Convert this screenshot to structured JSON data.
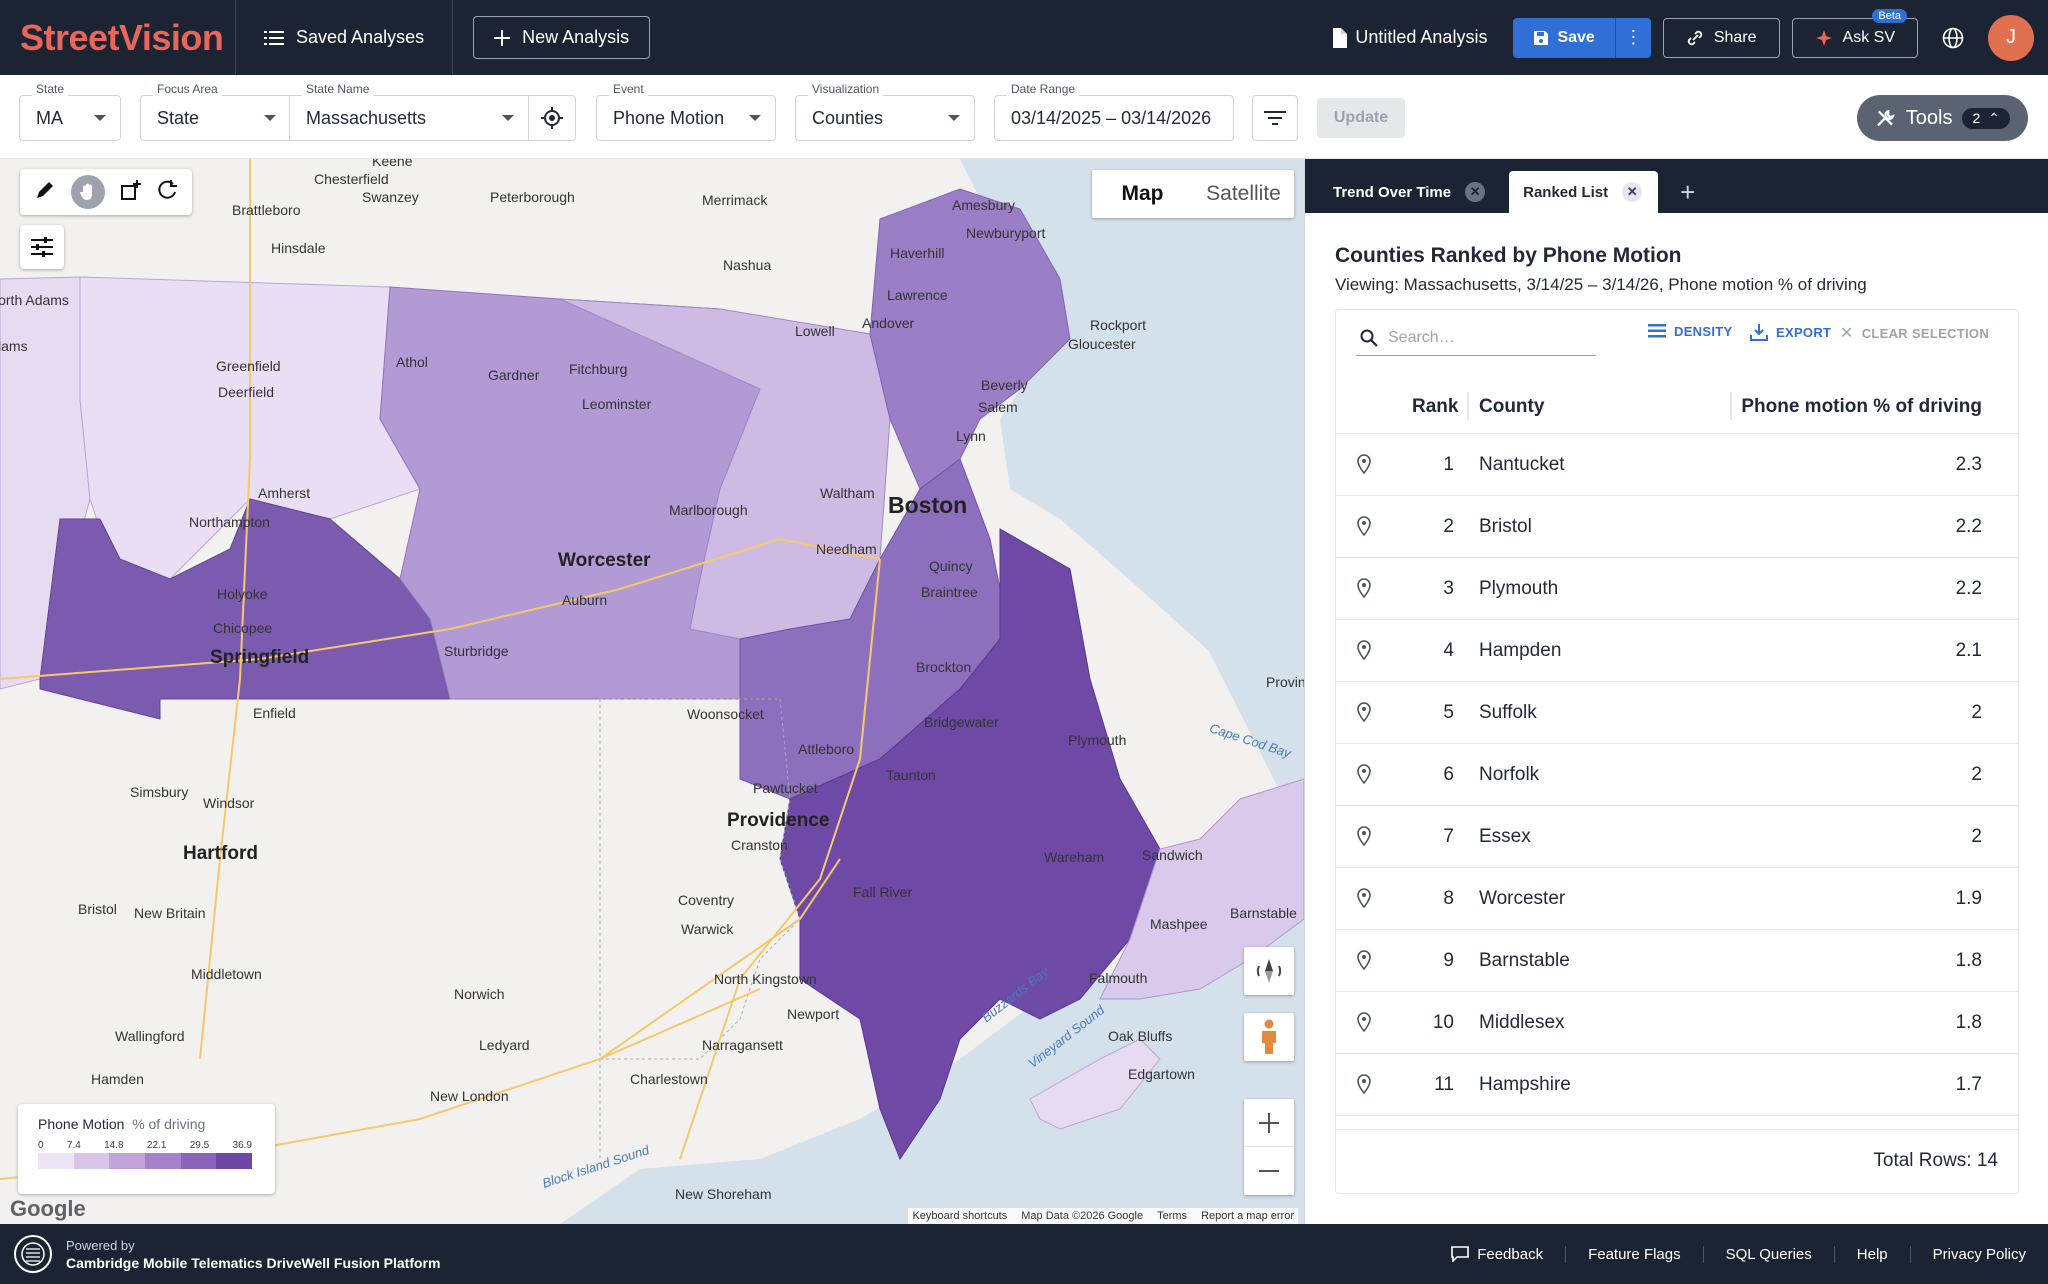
{
  "app": {
    "brand_part1": "Street",
    "brand_part2": "Vision",
    "saved_analyses": "Saved Analyses",
    "new_analysis": "New Analysis",
    "analysis_name": "Untitled Analysis",
    "save": "Save",
    "share": "Share",
    "ask": "Ask SV",
    "beta": "Beta",
    "avatar_initial": "J",
    "accent_color": "#2f6fd6",
    "brand_color": "#e8665a"
  },
  "filters": {
    "state": {
      "label": "State",
      "value": "MA"
    },
    "focus_area": {
      "label": "Focus Area",
      "value": "State"
    },
    "state_name": {
      "label": "State Name",
      "value": "Massachusetts"
    },
    "event": {
      "label": "Event",
      "value": "Phone Motion"
    },
    "visualization": {
      "label": "Visualization",
      "value": "Counties"
    },
    "date_range": {
      "label": "Date Range",
      "value": "03/14/2025 – 03/14/2026"
    },
    "update": "Update",
    "tools": "Tools",
    "tools_count": "2"
  },
  "map": {
    "type_map": "Map",
    "type_satellite": "Satellite",
    "legend_title": "Phone Motion",
    "legend_unit": "% of driving",
    "legend_ticks": [
      "0",
      "7.4",
      "14.8",
      "22.1",
      "29.5",
      "36.9"
    ],
    "legend_colors": [
      "#ede4f5",
      "#d7c4e8",
      "#bfa3da",
      "#a583cb",
      "#8a63ba",
      "#6e47a6"
    ],
    "attribution": [
      "Keyboard shortcuts",
      "Map Data ©2026 Google",
      "Terms",
      "Report a map error"
    ],
    "google": "Google",
    "labels_major": [
      "Boston",
      "Worcester",
      "Springfield",
      "Providence",
      "Hartford"
    ],
    "labels_minor": [
      "Keene",
      "Chesterfield",
      "Swanzey",
      "Peterborough",
      "Merrimack",
      "Amesbury",
      "Newburyport",
      "Haverhill",
      "Brattleboro",
      "Hinsdale",
      "Nashua",
      "Lawrence",
      "Andover",
      "Rockport",
      "Gloucester",
      "Lowell",
      "Greenfield",
      "Deerfield",
      "Athol",
      "Gardner",
      "Fitchburg",
      "Leominster",
      "Beverly",
      "Salem",
      "Lynn",
      "Amherst",
      "Northampton",
      "Marlborough",
      "Waltham",
      "Needham",
      "Quincy",
      "Braintree",
      "Holyoke",
      "Chicopee",
      "Auburn",
      "Sturbridge",
      "Brockton",
      "Enfield",
      "Woonsocket",
      "Bridgewater",
      "Plymouth",
      "Attleboro",
      "Pawtucket",
      "Taunton",
      "Simsbury",
      "Windsor",
      "Cranston",
      "Sandwich",
      "Wareham",
      "Fall River",
      "Mashpee",
      "Barnstable",
      "Bristol",
      "New Britain",
      "Coventry",
      "Warwick",
      "Falmouth",
      "Middletown",
      "North Kingstown",
      "Norwich",
      "Newport",
      "Oak Bluffs",
      "Wallingford",
      "Ledyard",
      "Narragansett",
      "Edgartown",
      "Hamden",
      "Charlestown",
      "New London",
      "New Shoreham",
      "North Adams",
      "Adams",
      "Provincetown"
    ],
    "water_labels": [
      "Cape Cod Bay",
      "Buzzards Bay",
      "Vineyard Sound",
      "Block Island Sound"
    ]
  },
  "panel": {
    "tabs": [
      {
        "label": "Trend Over Time",
        "active": false
      },
      {
        "label": "Ranked List",
        "active": true
      }
    ],
    "title": "Counties Ranked by Phone Motion",
    "subtitle": "Viewing: Massachusetts, 3/14/25 – 3/14/26, Phone motion % of driving",
    "search_placeholder": "Search…",
    "density": "DENSITY",
    "export": "EXPORT",
    "clear": "CLEAR SELECTION",
    "col_rank": "Rank",
    "col_county": "County",
    "col_value": "Phone motion % of driving",
    "rows": [
      {
        "rank": "1",
        "county": "Nantucket",
        "value": "2.3"
      },
      {
        "rank": "2",
        "county": "Bristol",
        "value": "2.2"
      },
      {
        "rank": "3",
        "county": "Plymouth",
        "value": "2.2"
      },
      {
        "rank": "4",
        "county": "Hampden",
        "value": "2.1"
      },
      {
        "rank": "5",
        "county": "Suffolk",
        "value": "2"
      },
      {
        "rank": "6",
        "county": "Norfolk",
        "value": "2"
      },
      {
        "rank": "7",
        "county": "Essex",
        "value": "2"
      },
      {
        "rank": "8",
        "county": "Worcester",
        "value": "1.9"
      },
      {
        "rank": "9",
        "county": "Barnstable",
        "value": "1.8"
      },
      {
        "rank": "10",
        "county": "Middlesex",
        "value": "1.8"
      },
      {
        "rank": "11",
        "county": "Hampshire",
        "value": "1.7"
      }
    ],
    "total_rows": "Total Rows: 14"
  },
  "footer": {
    "powered_by": "Powered by",
    "platform": "Cambridge Mobile Telematics DriveWell Fusion Platform",
    "links": [
      "Feedback",
      "Feature Flags",
      "SQL Queries",
      "Help",
      "Privacy Policy"
    ]
  }
}
